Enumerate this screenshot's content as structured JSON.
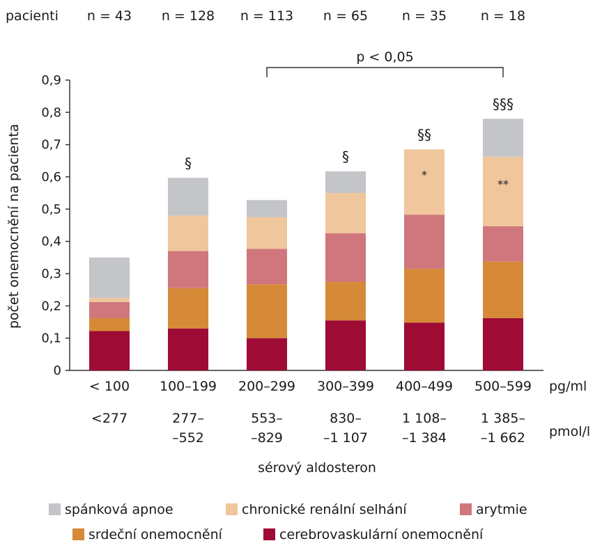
{
  "chart_data": {
    "type": "bar",
    "stacked": true,
    "title": "",
    "xlabel": "sérový aldosteron",
    "ylabel": "počet onemocnění na pacienta",
    "ylim": [
      0,
      0.9
    ],
    "yticks": [
      "0",
      "0,1",
      "0,2",
      "0,3",
      "0,4",
      "0,5",
      "0,6",
      "0,7",
      "0,8",
      "0,9"
    ],
    "grid": false,
    "legend_position": "bottom",
    "patients_label": "pacienti",
    "patients_counts": [
      "n = 43",
      "n = 128",
      "n = 113",
      "n = 65",
      "n = 35",
      "n = 18"
    ],
    "unit_pg": "pg/ml",
    "unit_pmol": "pmol/l",
    "categories": [
      "< 100",
      "100–199",
      "200–299",
      "300–399",
      "400–499",
      "500–599"
    ],
    "categories_pmol": [
      [
        "<277",
        ""
      ],
      [
        "277–",
        "–552"
      ],
      [
        "553–",
        "–829"
      ],
      [
        "830–",
        "–1 107"
      ],
      [
        "1 108–",
        "–1 384"
      ],
      [
        "1 385–",
        "–1 662"
      ]
    ],
    "series": [
      {
        "name": "cerebrovaskulární onemocnění",
        "color": "#9e0b35",
        "values": [
          0.122,
          0.13,
          0.1,
          0.155,
          0.148,
          0.162
        ]
      },
      {
        "name": "srdeční onemocnění",
        "color": "#d68a38",
        "values": [
          0.04,
          0.125,
          0.167,
          0.12,
          0.167,
          0.175
        ]
      },
      {
        "name": "arytmie",
        "color": "#d0767d",
        "values": [
          0.05,
          0.115,
          0.11,
          0.15,
          0.168,
          0.11
        ]
      },
      {
        "name": "chronické renální selhání",
        "color": "#f0c79c",
        "values": [
          0.013,
          0.11,
          0.098,
          0.125,
          0.202,
          0.215
        ]
      },
      {
        "name": "spánková apnoe",
        "color": "#c4c5c8",
        "values": [
          0.125,
          0.117,
          0.053,
          0.067,
          0.0,
          0.118
        ]
      }
    ],
    "bar_annotations": [
      "",
      "§",
      "",
      "§",
      "§§",
      "§§§"
    ],
    "inner_annotations": [
      "",
      "",
      "",
      "",
      "*",
      "**"
    ],
    "bracket": {
      "from_category": 2,
      "to_category": 5,
      "label": "p < 0,05"
    },
    "legend_order": [
      "spánková apnoe",
      "chronické renální selhání",
      "arytmie",
      "srdeční onemocnění",
      "cerebrovaskulární onemocnění"
    ]
  }
}
